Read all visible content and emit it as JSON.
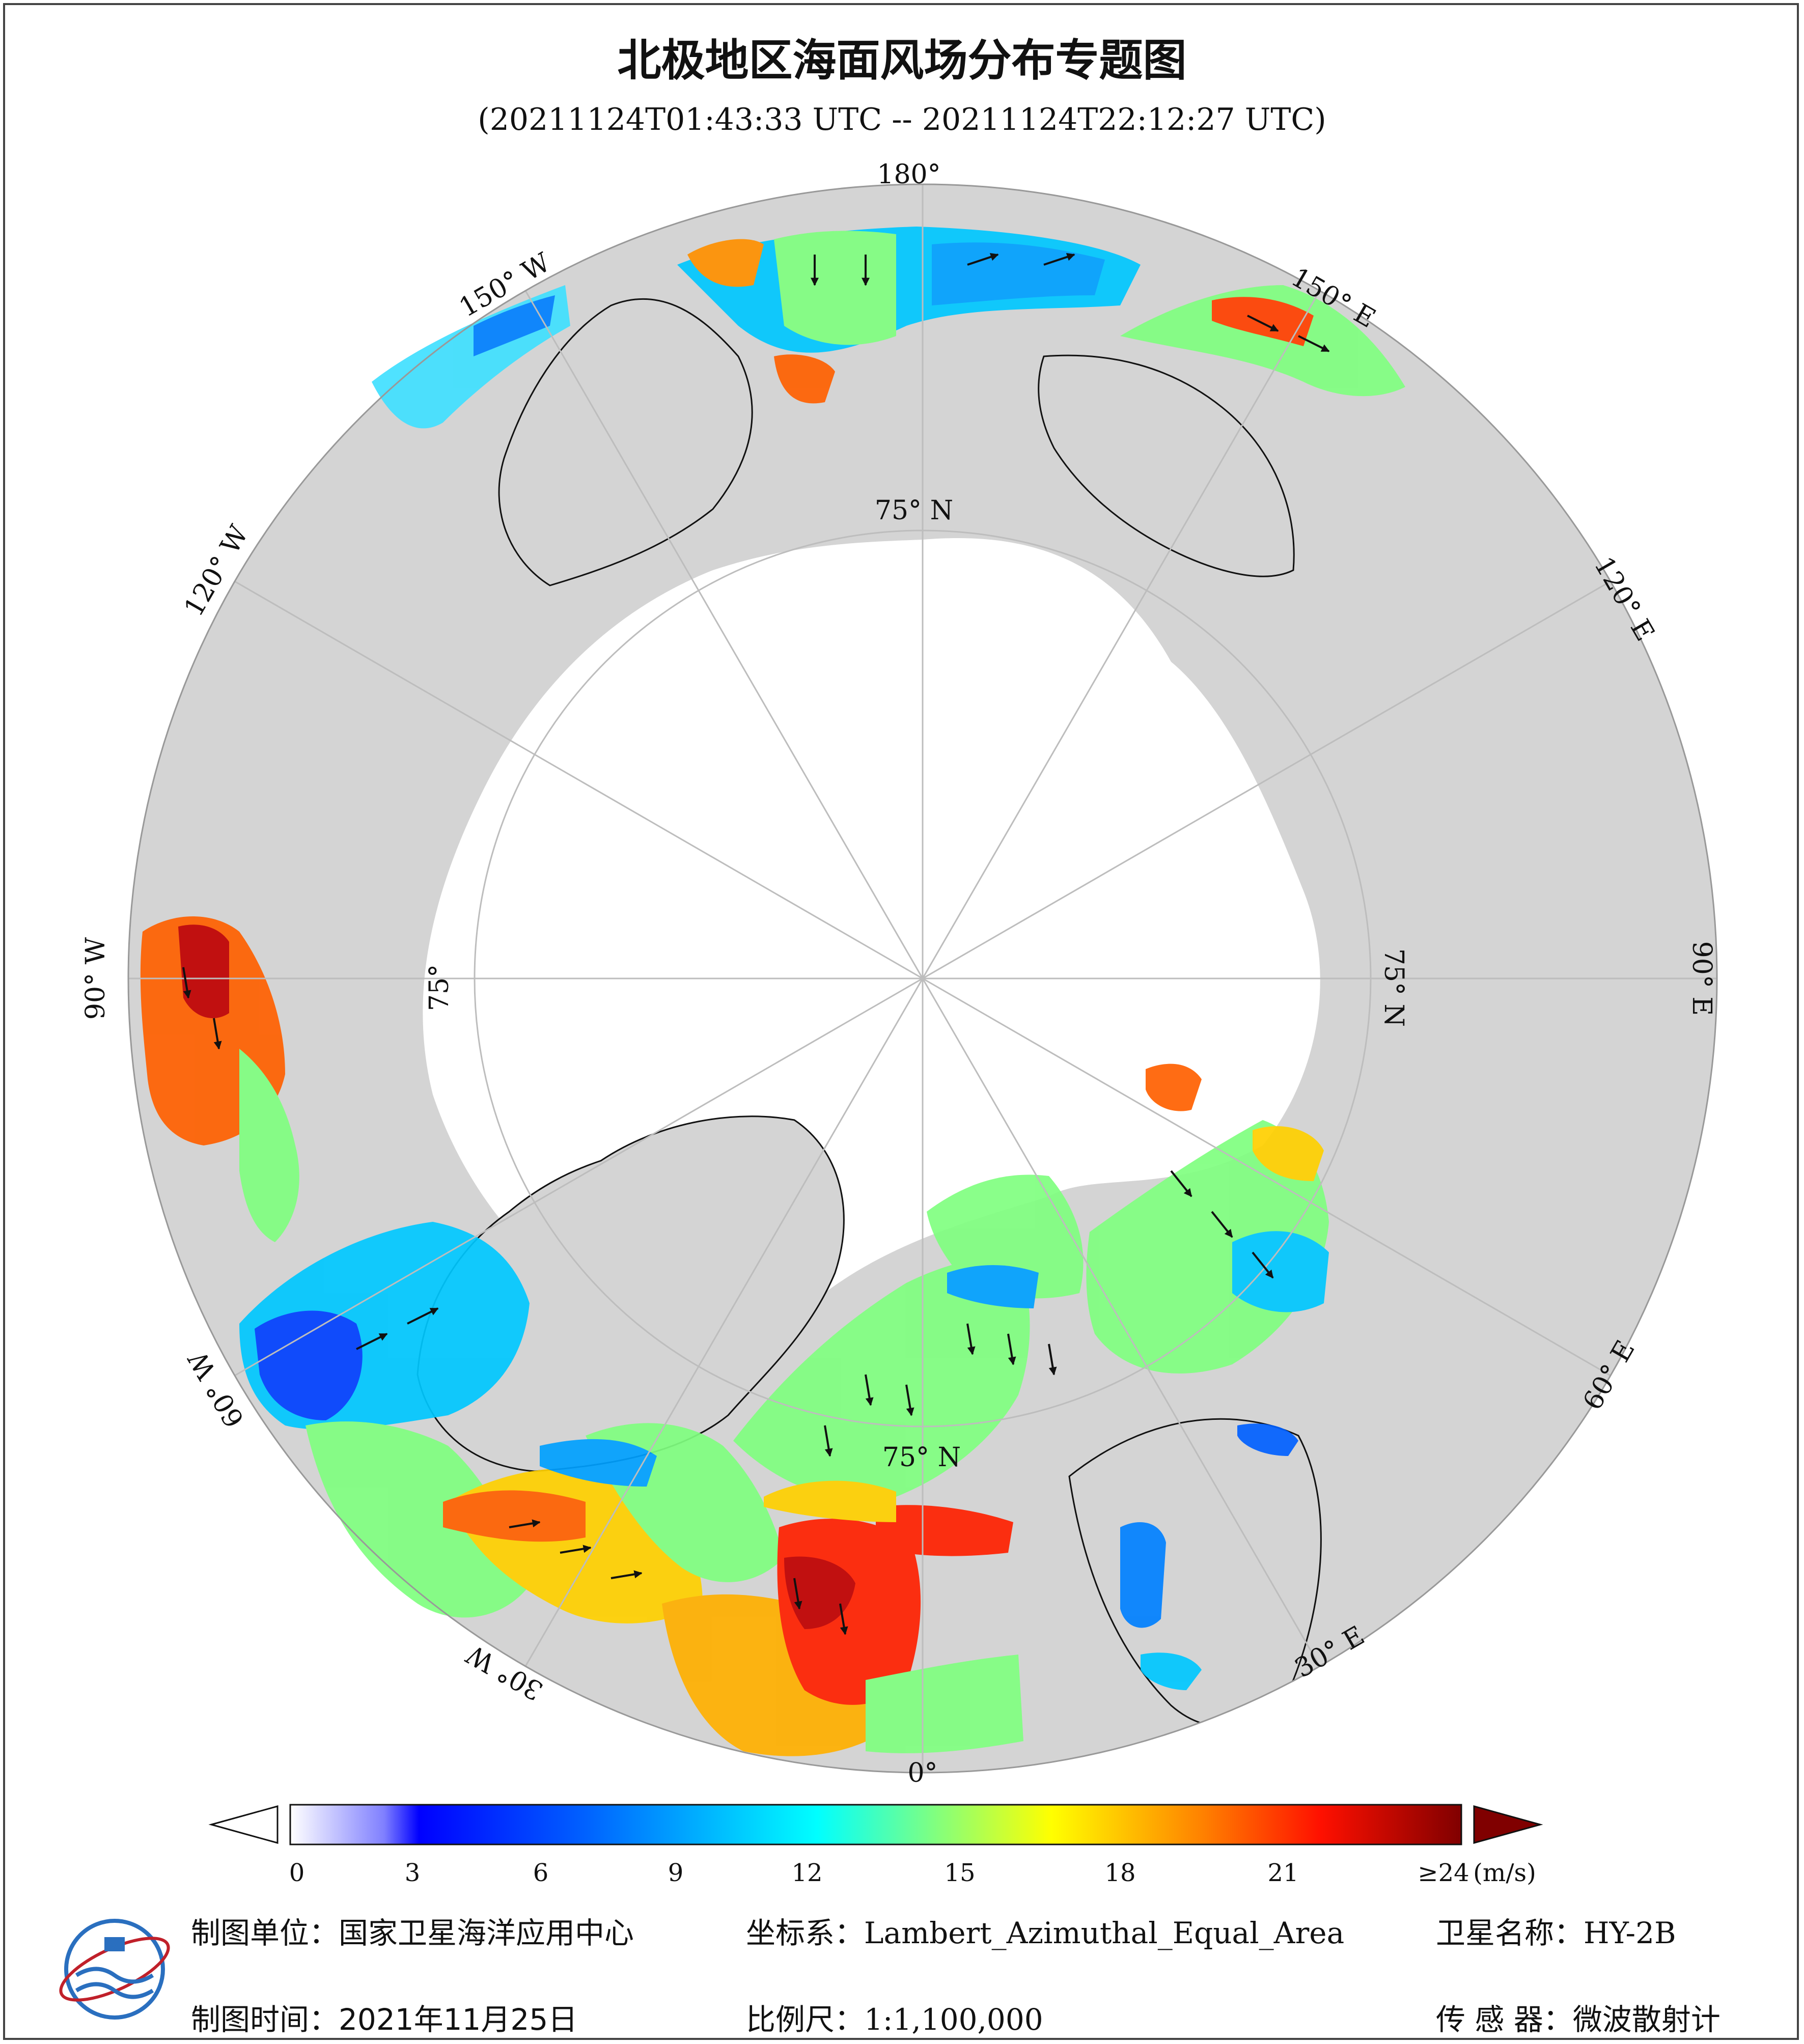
{
  "title": "北极地区海面风场分布专题图",
  "subtitle": "(20211124T01:43:33 UTC -- 20211124T22:12:27 UTC)",
  "map": {
    "longitude_labels": {
      "lon_180": "180°",
      "lon_150w": "150° W",
      "lon_120w": "120° W",
      "lon_90w": "90° W",
      "lon_60w": "60° W",
      "lon_30w": "30° W",
      "lon_0": "0°",
      "lon_30e": "30° E",
      "lon_60e": "60° E",
      "lon_90e": "90° E",
      "lon_120e": "120° E",
      "lon_150e": "150° E"
    },
    "latitude_labels": {
      "lat_top": "75° N",
      "lat_right": "75° N",
      "lat_left": "75°",
      "lat_bottom": "75° N"
    },
    "colors": {
      "ocean_background": "#d4d4d4",
      "land_ice": "#ffffff",
      "grid": "#c8c8c8",
      "arrow": "#111111"
    }
  },
  "colorbar": {
    "unit": "(m/s)",
    "tick_labels": [
      "0",
      "3",
      "6",
      "9",
      "12",
      "15",
      "18",
      "21",
      "≥24"
    ],
    "min": 0,
    "max": 24,
    "colors": [
      "#ffffff",
      "#c8c8ff",
      "#7070ff",
      "#0000ff",
      "#0070ff",
      "#00c8ff",
      "#00ffff",
      "#80ff80",
      "#ffff00",
      "#ff8000",
      "#ff0000",
      "#800000"
    ]
  },
  "footer": {
    "unit_label": "制图单位：",
    "unit_value": "国家卫星海洋应用中心",
    "coord_label": "坐标系：",
    "coord_value": "Lambert_Azimuthal_Equal_Area",
    "satellite_label": "卫星名称：",
    "satellite_value": "HY-2B",
    "time_label": "制图时间：",
    "time_value": "2021年11月25日",
    "scale_label": "比例尺：",
    "scale_value": "1:1,100,000",
    "sensor_label": "传 感 器：",
    "sensor_value": "微波散射计"
  }
}
